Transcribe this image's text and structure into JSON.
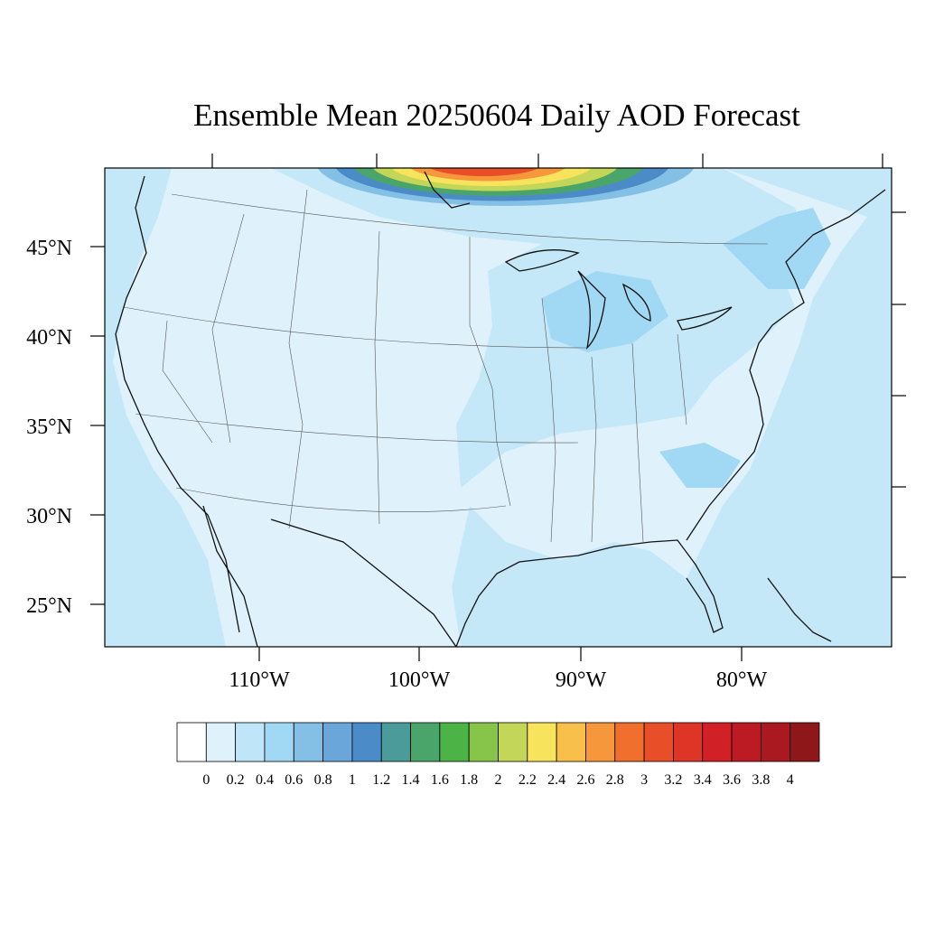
{
  "title": "Ensemble Mean 20250604 Daily AOD Forecast",
  "lat_labels": [
    "45°N",
    "40°N",
    "35°N",
    "30°N",
    "25°N"
  ],
  "lon_labels": [
    "110°W",
    "100°W",
    "90°W",
    "80°W"
  ],
  "colorbar": {
    "labels": [
      "0",
      "0.2",
      "0.4",
      "0.6",
      "0.8",
      "1",
      "1.2",
      "1.4",
      "1.6",
      "1.8",
      "2",
      "2.2",
      "2.4",
      "2.6",
      "2.8",
      "3",
      "3.2",
      "3.4",
      "3.6",
      "3.8",
      "4"
    ],
    "colors": [
      "#ffffff",
      "#dff2fb",
      "#bfe6f8",
      "#a1d8f4",
      "#84bfe6",
      "#6aa6d9",
      "#4a8bc8",
      "#4b9b9a",
      "#4aa56b",
      "#4cb447",
      "#87c54a",
      "#c4d658",
      "#f8e45c",
      "#f8c04b",
      "#f6973c",
      "#f06f2c",
      "#e84f28",
      "#df3526",
      "#d22027",
      "#bd1b24",
      "#a9191f",
      "#8e1719"
    ]
  },
  "field": {
    "background_color": "#dff2fb",
    "ocean_color": "#c4e8f8",
    "plume_colors": [
      "#84bfe6",
      "#4a8bc8",
      "#4aa56b",
      "#c4d658",
      "#f8e45c",
      "#f6973c",
      "#e84f28"
    ]
  }
}
